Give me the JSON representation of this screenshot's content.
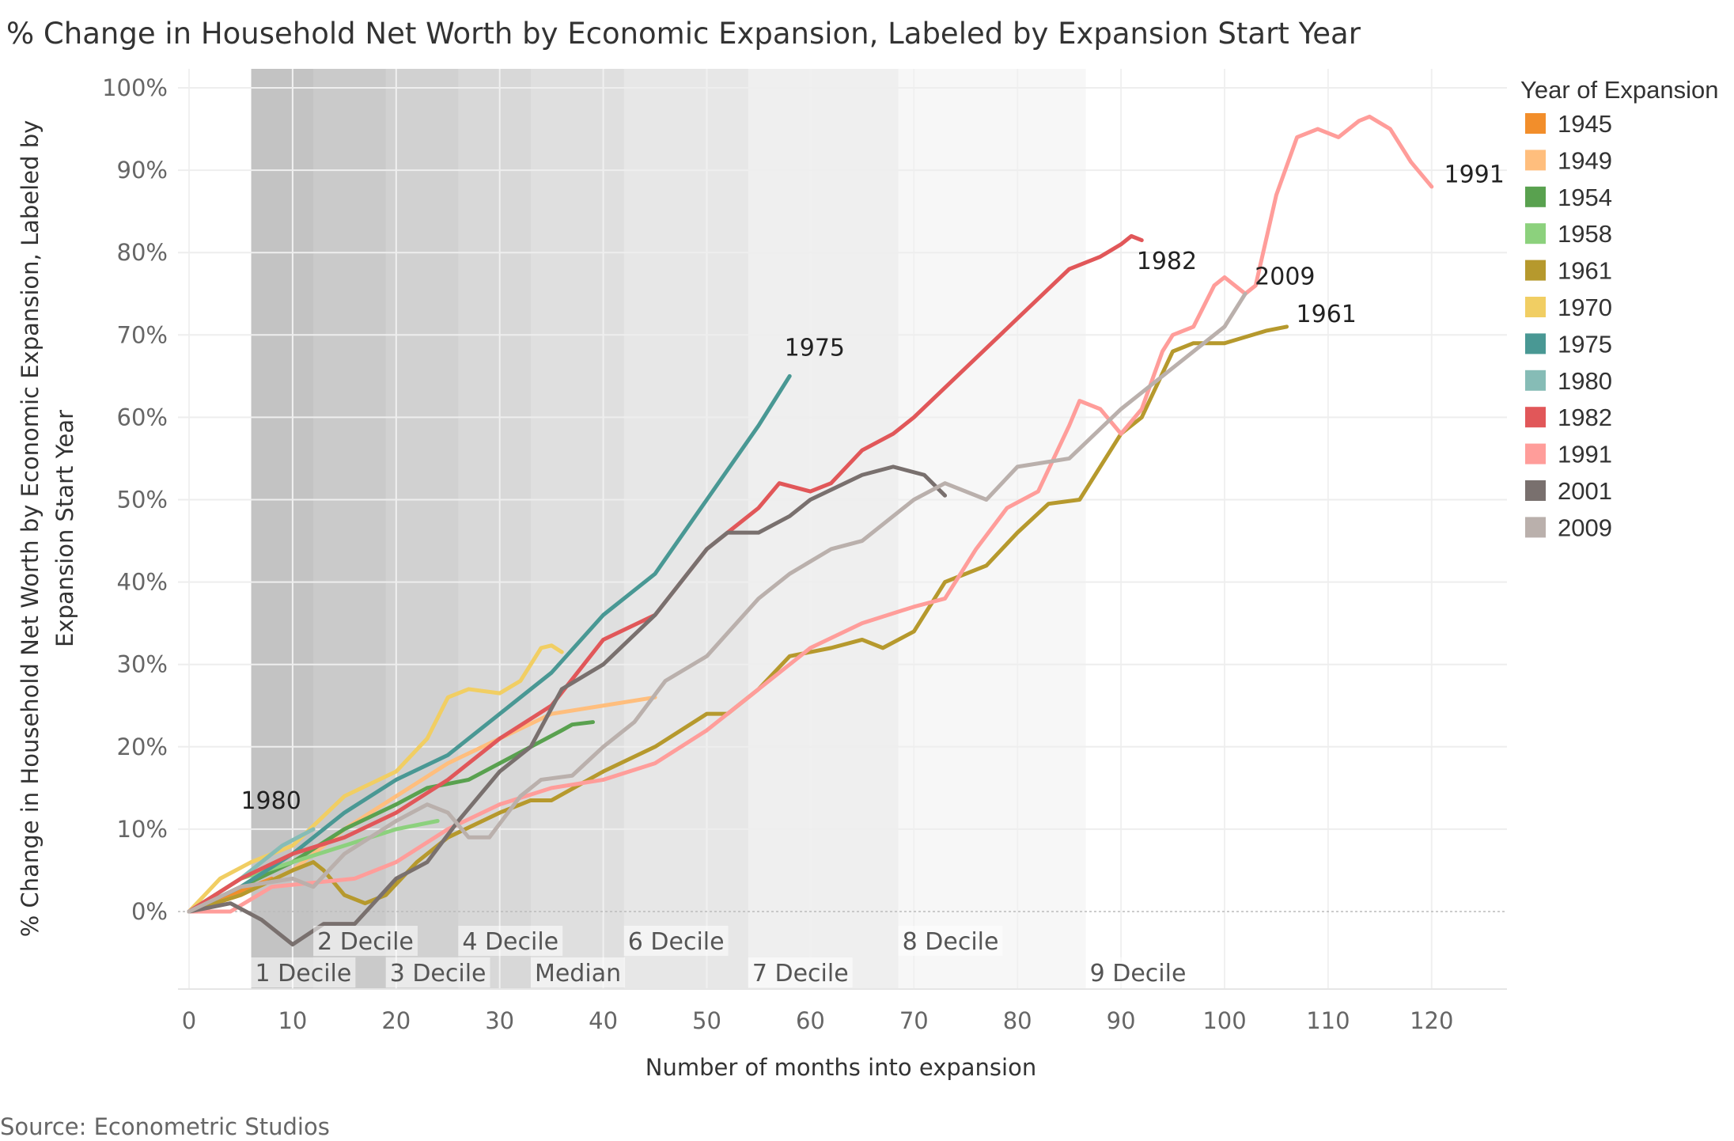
{
  "chart_data": {
    "type": "line",
    "title": "% Change in Household Net Worth by Economic Expansion, Labeled by Expansion Start Year",
    "xlabel": "Number of months into expansion",
    "ylabel_line1": "% Change in Household Net Worth by Economic Expansion, Labeled by",
    "ylabel_line2": "Expansion Start Year",
    "xlim": [
      0,
      126
    ],
    "ylim": [
      -10,
      100
    ],
    "xticks": [
      0,
      10,
      20,
      30,
      40,
      50,
      60,
      70,
      80,
      90,
      100,
      110,
      120
    ],
    "xtick_labels": [
      "0",
      "10",
      "20",
      "30",
      "40",
      "50",
      "60",
      "70",
      "80",
      "90",
      "100",
      "110",
      "120"
    ],
    "yticks": [
      0,
      10,
      20,
      30,
      40,
      50,
      60,
      70,
      80,
      90,
      100
    ],
    "ytick_labels": [
      "0%",
      "10%",
      "20%",
      "30%",
      "40%",
      "50%",
      "60%",
      "70%",
      "80%",
      "90%",
      "100%"
    ],
    "grid": true,
    "legend": {
      "title": "Year of Expansion",
      "placement": "right"
    },
    "source": "Source: Econometric Studios",
    "deciles": [
      {
        "label": "1 Decile",
        "month": 6
      },
      {
        "label": "2 Decile",
        "month": 12
      },
      {
        "label": "3 Decile",
        "month": 19
      },
      {
        "label": "4 Decile",
        "month": 26
      },
      {
        "label": "Median",
        "month": 33
      },
      {
        "label": "6 Decile",
        "month": 42
      },
      {
        "label": "7 Decile",
        "month": 54
      },
      {
        "label": "8 Decile",
        "month": 68.5
      },
      {
        "label": "9 Decile",
        "month": 86.6
      }
    ],
    "series": [
      {
        "name": "1945",
        "color": "#f28e2b",
        "labeled": false,
        "points": [
          [
            0,
            0
          ],
          [
            4,
            2
          ],
          [
            8,
            4
          ]
        ]
      },
      {
        "name": "1949",
        "color": "#ffbe7d",
        "labeled": false,
        "points": [
          [
            0,
            0
          ],
          [
            5,
            2
          ],
          [
            10,
            5
          ],
          [
            15,
            10
          ],
          [
            20,
            14
          ],
          [
            25,
            18
          ],
          [
            30,
            21
          ],
          [
            35,
            24
          ],
          [
            40,
            25
          ],
          [
            45,
            26
          ]
        ]
      },
      {
        "name": "1954",
        "color": "#59a14f",
        "labeled": false,
        "points": [
          [
            0,
            0
          ],
          [
            5,
            3
          ],
          [
            10,
            6
          ],
          [
            15,
            10
          ],
          [
            20,
            13
          ],
          [
            23,
            15
          ],
          [
            27,
            16
          ],
          [
            30,
            18
          ],
          [
            33,
            20
          ],
          [
            36,
            22
          ],
          [
            37,
            22.7
          ],
          [
            39,
            23
          ]
        ]
      },
      {
        "name": "1958",
        "color": "#8cd17d",
        "labeled": false,
        "points": [
          [
            0,
            0
          ],
          [
            5,
            4
          ],
          [
            10,
            6
          ],
          [
            15,
            8
          ],
          [
            20,
            10
          ],
          [
            24,
            11
          ]
        ]
      },
      {
        "name": "1961",
        "color": "#b6992d",
        "labeled": true,
        "points": [
          [
            0,
            0
          ],
          [
            5,
            2
          ],
          [
            10,
            5
          ],
          [
            12,
            6
          ],
          [
            13,
            5
          ],
          [
            15,
            2
          ],
          [
            17,
            1
          ],
          [
            19,
            2
          ],
          [
            22,
            6
          ],
          [
            25,
            9
          ],
          [
            30,
            12
          ],
          [
            33,
            13.5
          ],
          [
            35,
            13.5
          ],
          [
            40,
            17
          ],
          [
            45,
            20
          ],
          [
            50,
            24
          ],
          [
            52,
            24
          ],
          [
            55,
            27
          ],
          [
            58,
            31
          ],
          [
            62,
            32
          ],
          [
            65,
            33
          ],
          [
            67,
            32
          ],
          [
            70,
            34
          ],
          [
            73,
            40
          ],
          [
            77,
            42
          ],
          [
            80,
            46
          ],
          [
            83,
            49.5
          ],
          [
            86,
            50
          ],
          [
            90,
            58
          ],
          [
            92,
            60
          ],
          [
            95,
            68
          ],
          [
            97,
            69
          ],
          [
            100,
            69
          ],
          [
            104,
            70.5
          ],
          [
            106,
            71
          ]
        ]
      },
      {
        "name": "1970",
        "color": "#f1ce63",
        "labeled": false,
        "points": [
          [
            0,
            0
          ],
          [
            3,
            4
          ],
          [
            6,
            6
          ],
          [
            10,
            8
          ],
          [
            15,
            14
          ],
          [
            20,
            17
          ],
          [
            23,
            21
          ],
          [
            25,
            26
          ],
          [
            27,
            27
          ],
          [
            30,
            26.5
          ],
          [
            32,
            28
          ],
          [
            34,
            32
          ],
          [
            35,
            32.3
          ],
          [
            36,
            31.5
          ]
        ]
      },
      {
        "name": "1975",
        "color": "#499894",
        "labeled": true,
        "points": [
          [
            0,
            0
          ],
          [
            5,
            3
          ],
          [
            10,
            7
          ],
          [
            15,
            12
          ],
          [
            20,
            16
          ],
          [
            25,
            19
          ],
          [
            30,
            24
          ],
          [
            35,
            29
          ],
          [
            40,
            36
          ],
          [
            45,
            41
          ],
          [
            50,
            50
          ],
          [
            55,
            59
          ],
          [
            58,
            65
          ]
        ]
      },
      {
        "name": "1980",
        "color": "#86bcb6",
        "labeled": true,
        "points": [
          [
            0,
            0
          ],
          [
            5,
            4
          ],
          [
            9,
            8
          ],
          [
            12,
            10
          ]
        ]
      },
      {
        "name": "1982",
        "color": "#e15759",
        "labeled": true,
        "points": [
          [
            0,
            0
          ],
          [
            5,
            4
          ],
          [
            10,
            7
          ],
          [
            15,
            9
          ],
          [
            20,
            12
          ],
          [
            25,
            16
          ],
          [
            30,
            21
          ],
          [
            35,
            25
          ],
          [
            40,
            33
          ],
          [
            45,
            36
          ],
          [
            50,
            44
          ],
          [
            52,
            46
          ],
          [
            55,
            49
          ],
          [
            57,
            52
          ],
          [
            60,
            51
          ],
          [
            62,
            52
          ],
          [
            65,
            56
          ],
          [
            68,
            58
          ],
          [
            70,
            60
          ],
          [
            75,
            66
          ],
          [
            80,
            72
          ],
          [
            85,
            78
          ],
          [
            88,
            79.5
          ],
          [
            90,
            81
          ],
          [
            91,
            82
          ],
          [
            92,
            81.5
          ]
        ]
      },
      {
        "name": "1991",
        "color": "#ff9d9a",
        "labeled": true,
        "points": [
          [
            0,
            0
          ],
          [
            4,
            0
          ],
          [
            8,
            3
          ],
          [
            12,
            3.5
          ],
          [
            16,
            4
          ],
          [
            20,
            6
          ],
          [
            25,
            10
          ],
          [
            30,
            13
          ],
          [
            35,
            15
          ],
          [
            40,
            16
          ],
          [
            45,
            18
          ],
          [
            50,
            22
          ],
          [
            55,
            27
          ],
          [
            60,
            32
          ],
          [
            65,
            35
          ],
          [
            70,
            37
          ],
          [
            73,
            38
          ],
          [
            76,
            44
          ],
          [
            79,
            49
          ],
          [
            82,
            51
          ],
          [
            85,
            59
          ],
          [
            86,
            62
          ],
          [
            88,
            61
          ],
          [
            90,
            58
          ],
          [
            92,
            61
          ],
          [
            94,
            68
          ],
          [
            95,
            70
          ],
          [
            97,
            71
          ],
          [
            99,
            76
          ],
          [
            100,
            77
          ],
          [
            102,
            75
          ],
          [
            103,
            76
          ],
          [
            105,
            87
          ],
          [
            107,
            94
          ],
          [
            109,
            95
          ],
          [
            111,
            94
          ],
          [
            113,
            96
          ],
          [
            114,
            96.5
          ],
          [
            116,
            95
          ],
          [
            118,
            91
          ],
          [
            120,
            88
          ]
        ]
      },
      {
        "name": "2001",
        "color": "#79706e",
        "labeled": false,
        "points": [
          [
            0,
            0
          ],
          [
            4,
            1
          ],
          [
            7,
            -1
          ],
          [
            10,
            -4
          ],
          [
            13,
            -1.5
          ],
          [
            16,
            -1.5
          ],
          [
            20,
            4
          ],
          [
            23,
            6
          ],
          [
            26,
            11
          ],
          [
            30,
            17
          ],
          [
            33,
            20
          ],
          [
            36,
            27
          ],
          [
            40,
            30
          ],
          [
            45,
            36
          ],
          [
            50,
            44
          ],
          [
            52,
            46
          ],
          [
            55,
            46
          ],
          [
            58,
            48
          ],
          [
            60,
            50
          ],
          [
            65,
            53
          ],
          [
            68,
            54
          ],
          [
            71,
            53
          ],
          [
            73,
            50.5
          ]
        ]
      },
      {
        "name": "2009",
        "color": "#bab0ac",
        "labeled": true,
        "points": [
          [
            0,
            0
          ],
          [
            5,
            3
          ],
          [
            10,
            4
          ],
          [
            12,
            3
          ],
          [
            15,
            7
          ],
          [
            20,
            11
          ],
          [
            23,
            13
          ],
          [
            25,
            12
          ],
          [
            27,
            9
          ],
          [
            29,
            9
          ],
          [
            32,
            14
          ],
          [
            34,
            16
          ],
          [
            37,
            16.5
          ],
          [
            40,
            20
          ],
          [
            43,
            23
          ],
          [
            46,
            28
          ],
          [
            50,
            31
          ],
          [
            55,
            38
          ],
          [
            58,
            41
          ],
          [
            62,
            44
          ],
          [
            65,
            45
          ],
          [
            70,
            50
          ],
          [
            73,
            52
          ],
          [
            77,
            50
          ],
          [
            80,
            54
          ],
          [
            85,
            55
          ],
          [
            90,
            61
          ],
          [
            95,
            66
          ],
          [
            100,
            71
          ],
          [
            102,
            75
          ]
        ]
      }
    ]
  }
}
